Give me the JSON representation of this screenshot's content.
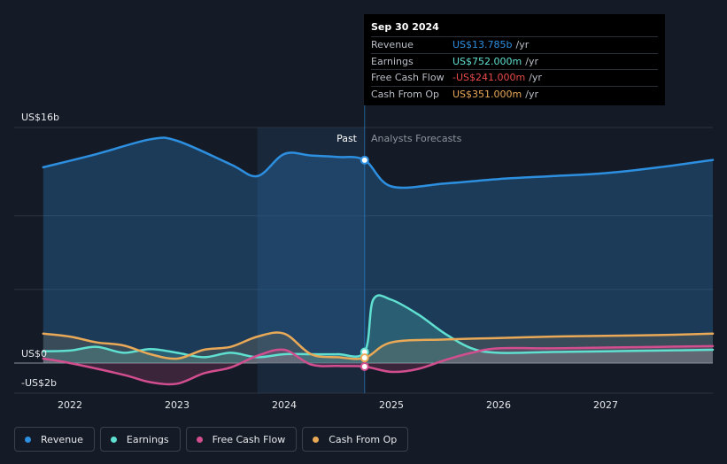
{
  "chart_data": {
    "type": "line",
    "y_axis_labels": [
      "US$16b",
      "US$0",
      "-US$2b"
    ],
    "x_tick_labels": [
      "2022",
      "2023",
      "2024",
      "2025",
      "2026",
      "2027"
    ],
    "ylim": [
      -2,
      16
    ],
    "divider_labels": {
      "past": "Past",
      "forecast": "Analysts Forecasts"
    },
    "series": [
      {
        "name": "Revenue",
        "color": "#2d8fe0",
        "x": [
          2021.75,
          2022.25,
          2022.75,
          2023.0,
          2023.5,
          2023.75,
          2024.0,
          2024.25,
          2024.5,
          2024.75,
          2025.0,
          2025.5,
          2026.0,
          2026.5,
          2027.0,
          2027.5,
          2028.0
        ],
        "y": [
          13.3,
          14.2,
          15.2,
          15.1,
          13.5,
          12.7,
          14.2,
          14.1,
          14.0,
          13.785,
          12.0,
          12.2,
          12.5,
          12.7,
          12.9,
          13.3,
          13.8
        ]
      },
      {
        "name": "Earnings",
        "color": "#5fe0d0",
        "x": [
          2021.75,
          2022.0,
          2022.25,
          2022.5,
          2022.75,
          2023.0,
          2023.25,
          2023.5,
          2023.75,
          2024.0,
          2024.25,
          2024.5,
          2024.75,
          2024.83,
          2025.0,
          2025.25,
          2025.5,
          2025.75,
          2026.0,
          2026.5,
          2027.0,
          2027.5,
          2028.0
        ],
        "y": [
          0.8,
          0.85,
          1.1,
          0.7,
          0.95,
          0.7,
          0.4,
          0.7,
          0.4,
          0.6,
          0.6,
          0.6,
          0.752,
          4.3,
          4.3,
          3.3,
          2.0,
          1.0,
          0.7,
          0.75,
          0.8,
          0.85,
          0.9
        ]
      },
      {
        "name": "Free Cash Flow",
        "color": "#d24e8f",
        "x": [
          2021.75,
          2022.0,
          2022.5,
          2022.75,
          2023.0,
          2023.25,
          2023.5,
          2023.75,
          2024.0,
          2024.25,
          2024.5,
          2024.75,
          2025.0,
          2025.25,
          2025.5,
          2025.75,
          2026.0,
          2026.5,
          2027.0,
          2027.5,
          2028.0
        ],
        "y": [
          0.3,
          0.0,
          -0.8,
          -1.3,
          -1.4,
          -0.7,
          -0.3,
          0.5,
          0.9,
          -0.1,
          -0.2,
          -0.241,
          -0.6,
          -0.4,
          0.2,
          0.7,
          1.0,
          1.0,
          1.05,
          1.1,
          1.15
        ]
      },
      {
        "name": "Cash From Op",
        "color": "#e9a957",
        "x": [
          2021.75,
          2022.0,
          2022.25,
          2022.5,
          2022.75,
          2023.0,
          2023.25,
          2023.5,
          2023.75,
          2024.0,
          2024.25,
          2024.5,
          2024.75,
          2025.0,
          2025.5,
          2026.0,
          2026.5,
          2027.0,
          2027.5,
          2028.0
        ],
        "y": [
          2.0,
          1.8,
          1.4,
          1.2,
          0.6,
          0.3,
          0.9,
          1.1,
          1.8,
          2.0,
          0.6,
          0.4,
          0.351,
          1.4,
          1.6,
          1.7,
          1.8,
          1.85,
          1.9,
          2.0
        ]
      }
    ]
  },
  "tooltip": {
    "date": "Sep 30 2024",
    "rows": [
      {
        "label": "Revenue",
        "value": "US$13.785b",
        "unit": "/yr",
        "color": "#2d8fe0"
      },
      {
        "label": "Earnings",
        "value": "US$752.000m",
        "unit": "/yr",
        "color": "#5fe0d0"
      },
      {
        "label": "Free Cash Flow",
        "value": "-US$241.000m",
        "unit": "/yr",
        "color": "#e84a4a"
      },
      {
        "label": "Cash From Op",
        "value": "US$351.000m",
        "unit": "/yr",
        "color": "#e9a957"
      }
    ]
  },
  "legend": [
    {
      "label": "Revenue",
      "color": "#2d8fe0"
    },
    {
      "label": "Earnings",
      "color": "#5fe0d0"
    },
    {
      "label": "Free Cash Flow",
      "color": "#d24e8f"
    },
    {
      "label": "Cash From Op",
      "color": "#e9a957"
    }
  ]
}
